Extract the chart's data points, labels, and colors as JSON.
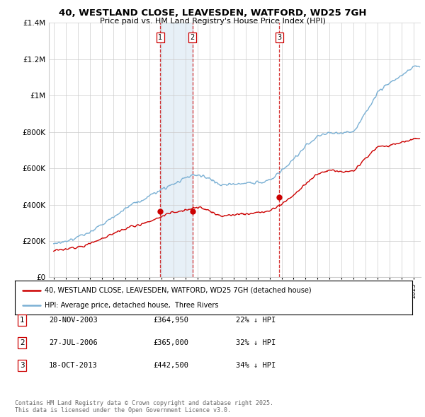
{
  "title": "40, WESTLAND CLOSE, LEAVESDEN, WATFORD, WD25 7GH",
  "subtitle": "Price paid vs. HM Land Registry's House Price Index (HPI)",
  "ylim": [
    0,
    1400000
  ],
  "yticks": [
    0,
    200000,
    400000,
    600000,
    800000,
    1000000,
    1200000,
    1400000
  ],
  "sale_prices": [
    364950,
    365000,
    442500
  ],
  "sale_labels": [
    "1",
    "2",
    "3"
  ],
  "sale_year_vals": [
    2003.89,
    2006.57,
    2013.8
  ],
  "sale_info": [
    {
      "label": "1",
      "date": "20-NOV-2003",
      "price": "£364,950",
      "pct": "22% ↓ HPI"
    },
    {
      "label": "2",
      "date": "27-JUL-2006",
      "price": "£365,000",
      "pct": "32% ↓ HPI"
    },
    {
      "label": "3",
      "date": "18-OCT-2013",
      "price": "£442,500",
      "pct": "34% ↓ HPI"
    }
  ],
  "legend_line1": "40, WESTLAND CLOSE, LEAVESDEN, WATFORD, WD25 7GH (detached house)",
  "legend_line2": "HPI: Average price, detached house,  Three Rivers",
  "footer": "Contains HM Land Registry data © Crown copyright and database right 2025.\nThis data is licensed under the Open Government Licence v3.0.",
  "hpi_color": "#7ab0d4",
  "price_color": "#cc0000",
  "sale_vline_color": "#cc0000",
  "shade_color": "#ddeeff",
  "background_color": "#ffffff",
  "grid_color": "#cccccc",
  "hpi_base_years": [
    1995,
    1996,
    1997,
    1998,
    1999,
    2000,
    2001,
    2002,
    2003,
    2004,
    2005,
    2006,
    2007,
    2008,
    2009,
    2010,
    2011,
    2012,
    2013,
    2014,
    2015,
    2016,
    2017,
    2018,
    2019,
    2020,
    2021,
    2022,
    2023,
    2024,
    2025
  ],
  "hpi_base_vals": [
    185000,
    198000,
    218000,
    248000,
    290000,
    330000,
    375000,
    410000,
    440000,
    480000,
    510000,
    540000,
    560000,
    535000,
    495000,
    505000,
    510000,
    510000,
    530000,
    585000,
    650000,
    720000,
    775000,
    800000,
    795000,
    800000,
    900000,
    1020000,
    1060000,
    1100000,
    1150000
  ],
  "price_base_years": [
    1995,
    1996,
    1997,
    1998,
    1999,
    2000,
    2001,
    2002,
    2003,
    2004,
    2005,
    2006,
    2007,
    2008,
    2009,
    2010,
    2011,
    2012,
    2013,
    2014,
    2015,
    2016,
    2017,
    2018,
    2019,
    2020,
    2021,
    2022,
    2023,
    2024,
    2025
  ],
  "price_base_vals": [
    148000,
    155000,
    165000,
    182000,
    210000,
    240000,
    268000,
    285000,
    300000,
    330000,
    355000,
    365000,
    380000,
    360000,
    330000,
    340000,
    345000,
    350000,
    360000,
    400000,
    450000,
    510000,
    565000,
    585000,
    580000,
    585000,
    650000,
    710000,
    720000,
    740000,
    755000
  ]
}
